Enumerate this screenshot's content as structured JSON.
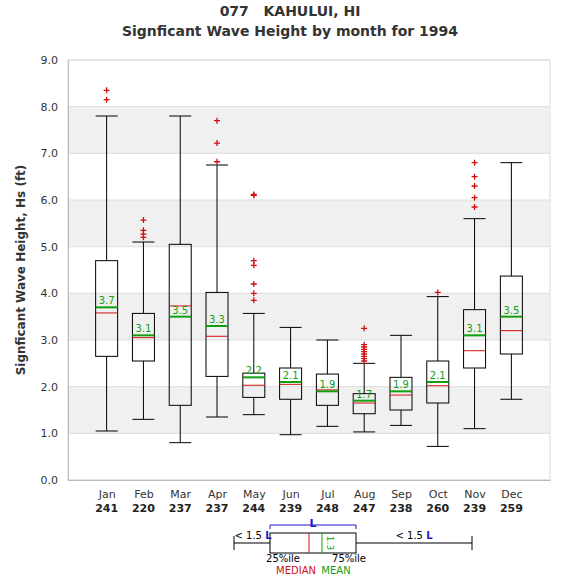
{
  "chart_data": {
    "type": "box",
    "title": "077   KAHULUI, HI",
    "subtitle": "Signficant Wave Height by month for 1994",
    "y_label": "Signficant Wave Height, Hs (ft)",
    "categories": [
      "Jan",
      "Feb",
      "Mar",
      "Apr",
      "May",
      "Jun",
      "Jul",
      "Aug",
      "Sep",
      "Oct",
      "Nov",
      "Dec"
    ],
    "counts": [
      241,
      220,
      237,
      237,
      244,
      239,
      248,
      247,
      238,
      260,
      239,
      259
    ],
    "whisker_low": [
      1.05,
      1.3,
      0.8,
      1.35,
      1.4,
      0.97,
      1.15,
      1.03,
      1.17,
      0.72,
      1.1,
      1.73
    ],
    "q1": [
      2.65,
      2.55,
      1.6,
      2.22,
      1.77,
      1.73,
      1.6,
      1.42,
      1.5,
      1.65,
      2.4,
      2.7
    ],
    "median": [
      3.58,
      3.05,
      3.73,
      3.08,
      2.03,
      2.05,
      1.93,
      1.65,
      1.82,
      2.02,
      2.77,
      3.2
    ],
    "mean": [
      3.7,
      3.1,
      3.5,
      3.3,
      2.2,
      2.1,
      1.9,
      1.7,
      1.9,
      2.1,
      3.1,
      3.5
    ],
    "q3": [
      4.7,
      3.57,
      5.05,
      4.02,
      2.29,
      2.4,
      2.27,
      1.85,
      2.2,
      2.55,
      3.65,
      4.37
    ],
    "whisker_high": [
      7.8,
      5.1,
      7.8,
      6.75,
      3.57,
      3.27,
      3.0,
      2.5,
      3.1,
      3.93,
      5.6,
      6.8
    ],
    "outliers": [
      [
        8.15,
        8.35
      ],
      [
        5.2,
        5.27,
        5.35,
        5.57
      ],
      [],
      [
        6.82,
        7.22,
        7.7
      ],
      [
        3.85,
        4.0,
        4.2,
        4.6,
        4.7,
        6.1,
        6.12
      ],
      [],
      [],
      [
        2.55,
        2.6,
        2.65,
        2.7,
        2.75,
        2.8,
        2.85,
        2.9,
        3.25
      ],
      [],
      [
        4.02
      ],
      [
        5.85,
        6.05,
        6.3,
        6.5,
        6.8
      ],
      []
    ],
    "data_labels": true,
    "grid": true,
    "ylim": [
      0,
      9
    ],
    "yticks": [
      {
        "value": 0,
        "label": "0.0"
      },
      {
        "value": 1,
        "label": "1.0"
      },
      {
        "value": 2,
        "label": "2.0"
      },
      {
        "value": 3,
        "label": "3.0"
      },
      {
        "value": 4,
        "label": "4.0"
      },
      {
        "value": 5,
        "label": "5.0"
      },
      {
        "value": 6,
        "label": "6.0"
      },
      {
        "value": 7,
        "label": "7.0"
      },
      {
        "value": 8,
        "label": "8.0"
      },
      {
        "value": 9,
        "label": "9.0"
      }
    ],
    "key": {
      "left": "< 1.5 L",
      "box": "L",
      "q1": "25%ile",
      "q3": "75%ile",
      "median": "MEDIAN",
      "mean": "MEAN",
      "mean_value": 1.3,
      "right": "< 1.5 L"
    }
  }
}
